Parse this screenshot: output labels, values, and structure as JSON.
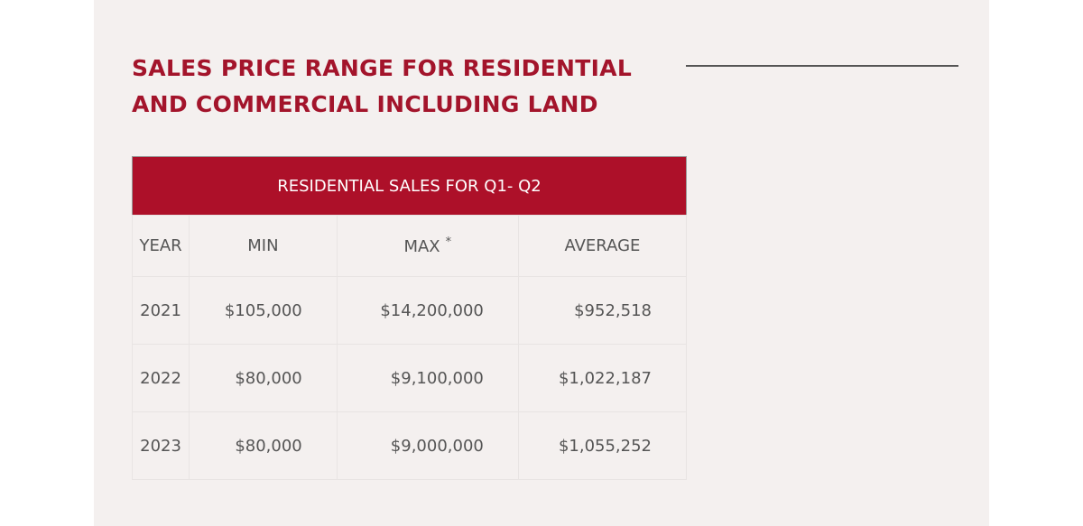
{
  "header": {
    "title_lines": [
      "SALES PRICE RANGE FOR RESIDENTIAL",
      "AND COMMERCIAL INCLUDING LAND"
    ]
  },
  "table": {
    "caption": "RESIDENTIAL SALES FOR Q1- Q2",
    "columns": [
      "YEAR",
      "MIN",
      "MAX",
      "AVERAGE"
    ],
    "max_note": "*",
    "rows": [
      [
        "2021",
        "$105,000",
        "$14,200,000",
        "$952,518"
      ],
      [
        "2022",
        "$80,000",
        "$9,100,000",
        "$1,022,187"
      ],
      [
        "2023",
        "$80,000",
        "$9,000,000",
        "$1,055,252"
      ]
    ]
  }
}
